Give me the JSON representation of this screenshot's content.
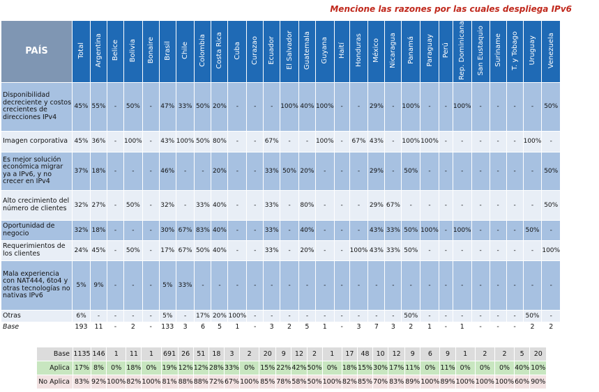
{
  "title": "Mencione las razones por las cuales despliega IPv6",
  "chart_data": {
    "type": "table",
    "corner_label": "PAÍS",
    "columns": [
      "Total",
      "Argentina",
      "Belice",
      "Bolivia",
      "Bonaire",
      "Brasil",
      "Chile",
      "Colombia",
      "Costa Rica",
      "Cuba",
      "Curazao",
      "Ecuador",
      "El Salvador",
      "Guatemala",
      "Guyana",
      "Haití",
      "Honduras",
      "México",
      "Nicaragua",
      "Panamá",
      "Paraguay",
      "Perú",
      "Rep. Dominicana",
      "San Eustaquio",
      "Suriname",
      "T. y Tobago",
      "Uruguay",
      "Venezuela"
    ],
    "rows": [
      {
        "label": "Disponibilidad decreciente y costos crecientes de direcciones IPv4",
        "values": [
          "45%",
          "55%",
          "-",
          "50%",
          "-",
          "47%",
          "33%",
          "50%",
          "20%",
          "-",
          "-",
          "-",
          "100%",
          "40%",
          "100%",
          "-",
          "-",
          "29%",
          "-",
          "100%",
          "-",
          "-",
          "100%",
          "-",
          "-",
          "-",
          "-",
          "50%"
        ]
      },
      {
        "label": "Imagen corporativa",
        "values": [
          "45%",
          "36%",
          "-",
          "100%",
          "-",
          "43%",
          "100%",
          "50%",
          "80%",
          "-",
          "-",
          "67%",
          "-",
          "-",
          "100%",
          "-",
          "67%",
          "43%",
          "-",
          "100%",
          "100%",
          "-",
          "-",
          "-",
          "-",
          "-",
          "100%",
          "-"
        ]
      },
      {
        "label": "Es mejor solución económica migrar ya a IPv6, y no crecer en IPv4",
        "values": [
          "37%",
          "18%",
          "-",
          "-",
          "-",
          "46%",
          "-",
          "-",
          "20%",
          "-",
          "-",
          "33%",
          "50%",
          "20%",
          "-",
          "-",
          "-",
          "29%",
          "-",
          "50%",
          "-",
          "-",
          "-",
          "-",
          "-",
          "-",
          "-",
          "50%"
        ]
      },
      {
        "label": "Alto crecimiento del número de clientes",
        "values": [
          "32%",
          "27%",
          "-",
          "50%",
          "-",
          "32%",
          "-",
          "33%",
          "40%",
          "-",
          "-",
          "33%",
          "-",
          "80%",
          "-",
          "-",
          "-",
          "29%",
          "67%",
          "-",
          "-",
          "-",
          "-",
          "-",
          "-",
          "-",
          "-",
          "50%"
        ]
      },
      {
        "label": "Oportunidad de negocio",
        "values": [
          "32%",
          "18%",
          "-",
          "-",
          "-",
          "30%",
          "67%",
          "83%",
          "40%",
          "-",
          "-",
          "33%",
          "-",
          "40%",
          "-",
          "-",
          "-",
          "43%",
          "33%",
          "50%",
          "100%",
          "-",
          "100%",
          "-",
          "-",
          "-",
          "50%",
          "-"
        ]
      },
      {
        "label": "Requerimientos de los clientes",
        "values": [
          "24%",
          "45%",
          "-",
          "50%",
          "-",
          "17%",
          "67%",
          "50%",
          "40%",
          "-",
          "-",
          "33%",
          "-",
          "20%",
          "-",
          "-",
          "100%",
          "43%",
          "33%",
          "50%",
          "-",
          "-",
          "-",
          "-",
          "-",
          "-",
          "-",
          "100%"
        ]
      },
      {
        "label": "Mala experiencia con NAT444, 6to4 y otras tecnologías no nativas IPv6",
        "values": [
          "5%",
          "9%",
          "-",
          "-",
          "-",
          "5%",
          "33%",
          "-",
          "-",
          "-",
          "-",
          "-",
          "-",
          "-",
          "-",
          "-",
          "-",
          "-",
          "-",
          "-",
          "-",
          "-",
          "-",
          "-",
          "-",
          "-",
          "-",
          "-"
        ]
      },
      {
        "label": "Otras",
        "values": [
          "6%",
          "-",
          "-",
          "-",
          "-",
          "5%",
          "-",
          "17%",
          "20%",
          "100%",
          "-",
          "-",
          "-",
          "-",
          "-",
          "-",
          "-",
          "-",
          "-",
          "50%",
          "-",
          "-",
          "-",
          "-",
          "-",
          "-",
          "50%",
          "-"
        ]
      },
      {
        "label": "Base",
        "values": [
          "193",
          "11",
          "-",
          "2",
          "-",
          "133",
          "3",
          "6",
          "5",
          "1",
          "-",
          "3",
          "2",
          "5",
          "1",
          "-",
          "3",
          "7",
          "3",
          "2",
          "1",
          "-",
          "1",
          "-",
          "-",
          "-",
          "2",
          "2"
        ]
      }
    ],
    "summary": {
      "rows": [
        {
          "label": "Base",
          "values": [
            "1135",
            "146",
            "1",
            "11",
            "1",
            "691",
            "26",
            "51",
            "18",
            "3",
            "2",
            "20",
            "9",
            "12",
            "2",
            "1",
            "17",
            "48",
            "10",
            "12",
            "9",
            "6",
            "9",
            "1",
            "2",
            "2",
            "5",
            "20"
          ]
        },
        {
          "label": "Aplica",
          "values": [
            "17%",
            "8%",
            "0%",
            "18%",
            "0%",
            "19%",
            "12%",
            "12%",
            "28%",
            "33%",
            "0%",
            "15%",
            "22%",
            "42%",
            "50%",
            "0%",
            "18%",
            "15%",
            "30%",
            "17%",
            "11%",
            "0%",
            "11%",
            "0%",
            "0%",
            "0%",
            "40%",
            "10%"
          ]
        },
        {
          "label": "No Aplica",
          "values": [
            "83%",
            "92%",
            "100%",
            "82%",
            "100%",
            "81%",
            "88%",
            "88%",
            "72%",
            "67%",
            "100%",
            "85%",
            "78%",
            "58%",
            "50%",
            "100%",
            "82%",
            "85%",
            "70%",
            "83%",
            "89%",
            "100%",
            "89%",
            "100%",
            "100%",
            "100%",
            "60%",
            "90%"
          ]
        }
      ]
    },
    "colors": {
      "header": "#1f6ab5",
      "corner": "#7f96b3",
      "shade": "#a7c1e1",
      "light": "#e8eef6",
      "title": "#c0281c"
    }
  }
}
